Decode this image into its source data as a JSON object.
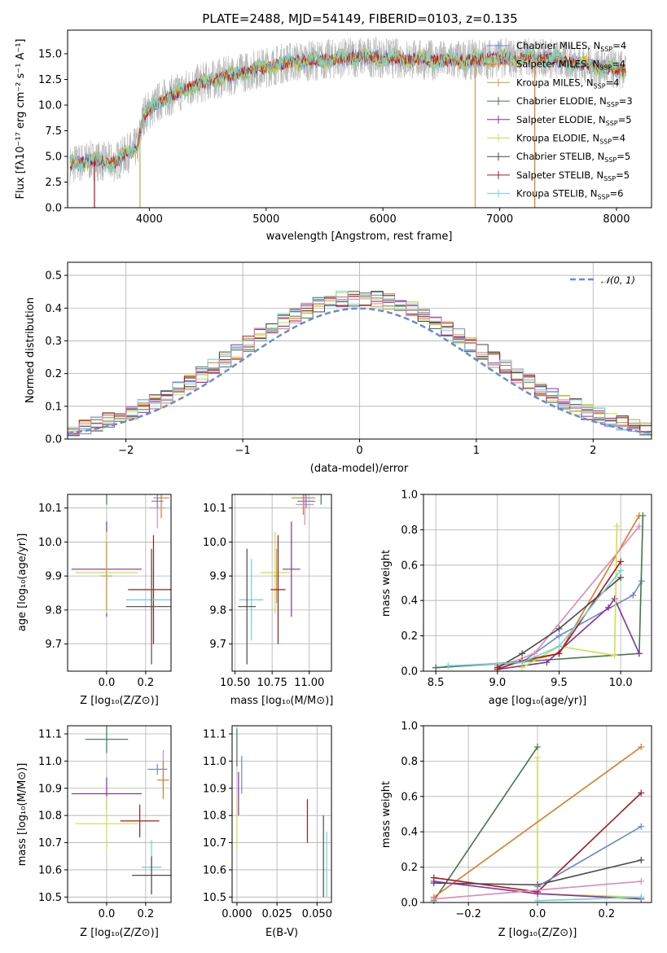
{
  "colors": {
    "Chabrier MILES": "#6a86d3",
    "Salpeter MILES": "#e07a28",
    "Kroupa MILES": "#c9a04a",
    "Chabrier ELODIE": "#3e7a4a",
    "Salpeter ELODIE": "#8a2ea8",
    "Kroupa ELODIE": "#cfe04a",
    "Chabrier STELIB": "#4a4a4a",
    "Salpeter STELIB": "#b01818",
    "Kroupa STELIB": "#6ed4d8",
    "pink": "#e08ab8",
    "grey": "#8a8a8a",
    "normal": "#6a8ad8"
  },
  "chart_data": [
    {
      "id": "spectrum",
      "type": "line",
      "title": "PLATE=2488, MJD=54149, FIBERID=0103, z=0.135",
      "xlabel": "wavelength [Angstrom, rest frame]",
      "ylabel": "Flux [f$_\\lambda$10$^{-17}$ erg cm$^{-2}$ s$^{-1}$ A$^{-1}$]",
      "xlim": [
        3300,
        8300
      ],
      "ylim": [
        0,
        17.3
      ],
      "xticks": [
        "4000",
        "5000",
        "6000",
        "7000",
        "8000"
      ],
      "yticks": [
        "0.0",
        "2.5",
        "5.0",
        "7.5",
        "10.0",
        "12.5",
        "15.0"
      ],
      "legend": [
        {
          "label": "Chabrier MILES, N",
          "sub": "SSP",
          "suffix": "=4"
        },
        {
          "label": "Salpeter MILES, N",
          "sub": "SSP",
          "suffix": "=4"
        },
        {
          "label": "Kroupa MILES, N",
          "sub": "SSP",
          "suffix": "=4"
        },
        {
          "label": "Chabrier ELODIE, N",
          "sub": "SSP",
          "suffix": "=3"
        },
        {
          "label": "Salpeter ELODIE, N",
          "sub": "SSP",
          "suffix": "=5"
        },
        {
          "label": "Kroupa ELODIE, N",
          "sub": "SSP",
          "suffix": "=4"
        },
        {
          "label": "Chabrier STELIB, N",
          "sub": "SSP",
          "suffix": "=5"
        },
        {
          "label": "Salpeter STELIB, N",
          "sub": "SSP",
          "suffix": "=5"
        },
        {
          "label": "Kroupa STELIB, N",
          "sub": "SSP",
          "suffix": "=6"
        }
      ],
      "legend_placement": "right",
      "continuum": [
        [
          3320,
          4.2
        ],
        [
          3500,
          4.6
        ],
        [
          3700,
          4.4
        ],
        [
          3900,
          6.0
        ],
        [
          3950,
          9.0
        ],
        [
          4100,
          10.5
        ],
        [
          4400,
          12.0
        ],
        [
          4800,
          13.2
        ],
        [
          5200,
          14.2
        ],
        [
          5500,
          14.4
        ],
        [
          5800,
          14.7
        ],
        [
          6200,
          14.5
        ],
        [
          6600,
          14.3
        ],
        [
          7000,
          14.6
        ],
        [
          7400,
          14.6
        ],
        [
          7800,
          13.8
        ],
        [
          8080,
          13.3
        ]
      ],
      "spikes": [
        [
          3530,
          0
        ],
        [
          3920,
          0
        ],
        [
          6790,
          0
        ],
        [
          7300,
          0
        ]
      ]
    },
    {
      "id": "residuals",
      "type": "bar",
      "xlabel": "(data-model)/error",
      "ylabel": "Normed distribution",
      "xlim": [
        -2.5,
        2.5
      ],
      "ylim": [
        0,
        0.54
      ],
      "xticks": [
        "−2",
        "−1",
        "0",
        "1",
        "2"
      ],
      "yticks": [
        "0.0",
        "0.1",
        "0.2",
        "0.3",
        "0.4",
        "0.5"
      ],
      "legend_label": "𝒩(0, 1)",
      "legend_placement": "top-right",
      "bin_width": 0.1
    },
    {
      "id": "age-vs-Z",
      "type": "scatter",
      "xlabel": "Z [log$_{10}$(Z/Z$_\\odot$)]",
      "ylabel": "age  [log$_{10}$(age/yr)]",
      "xlim": [
        -0.2,
        0.33
      ],
      "ylim": [
        9.62,
        10.14
      ],
      "xticks": [
        "0.0",
        "0.2"
      ],
      "xtick_values": [
        0,
        0.2
      ],
      "yticks": [
        "9.7",
        "9.8",
        "9.9",
        "10.0",
        "10.1"
      ],
      "ytick_values": [
        9.7,
        9.8,
        9.9,
        10.0,
        10.1
      ],
      "points": [
        {
          "s": "Chabrier ELODIE",
          "x": 0.0,
          "y": 10.17,
          "xe": 0.1,
          "ye": 0.06
        },
        {
          "s": "Salpeter MILES",
          "x": 0.28,
          "y": 10.13,
          "xe": 0.04,
          "ye": 0.06
        },
        {
          "s": "pink",
          "x": 0.26,
          "y": 10.1,
          "xe": 0.04,
          "ye": 0.06
        },
        {
          "s": "Chabrier MILES",
          "x": 0.26,
          "y": 10.12,
          "xe": 0.03,
          "ye": 0.02
        },
        {
          "s": "Salpeter ELODIE",
          "x": 0.0,
          "y": 9.92,
          "xe": 0.18,
          "ye": 0.14
        },
        {
          "s": "Kroupa ELODIE",
          "x": 0.0,
          "y": 9.91,
          "xe": 0.16,
          "ye": 0.12
        },
        {
          "s": "Kroupa MILES",
          "x": 0.0,
          "y": 9.9,
          "xe": 0.03,
          "ye": 0.1
        },
        {
          "s": "Salpeter STELIB",
          "x": 0.24,
          "y": 9.86,
          "xe": 0.13,
          "ye": 0.16
        },
        {
          "s": "Kroupa STELIB",
          "x": 0.23,
          "y": 9.83,
          "xe": 0.13,
          "ye": 0.12
        },
        {
          "s": "Chabrier STELIB",
          "x": 0.23,
          "y": 9.81,
          "xe": 0.13,
          "ye": 0.17
        }
      ]
    },
    {
      "id": "age-vs-mass",
      "type": "scatter",
      "xlabel": "mass [log$_{10}$(M/M$_\\odot$)]",
      "ylabel": "",
      "xlim": [
        10.48,
        11.15
      ],
      "ylim": [
        9.62,
        10.14
      ],
      "xticks": [
        "10.50",
        "10.75",
        "11.00"
      ],
      "xtick_values": [
        10.5,
        10.75,
        11.0
      ],
      "yticks": [
        "9.7",
        "9.8",
        "9.9",
        "10.0",
        "10.1"
      ],
      "ytick_values": [
        9.7,
        9.8,
        9.9,
        10.0,
        10.1
      ],
      "points": [
        {
          "s": "Chabrier ELODIE",
          "x": 11.08,
          "y": 10.17,
          "xe": 0.05,
          "ye": 0.06
        },
        {
          "s": "Salpeter MILES",
          "x": 10.96,
          "y": 10.13,
          "xe": 0.08,
          "ye": 0.05
        },
        {
          "s": "pink",
          "x": 10.97,
          "y": 10.11,
          "xe": 0.06,
          "ye": 0.06
        },
        {
          "s": "Chabrier MILES",
          "x": 10.98,
          "y": 10.12,
          "xe": 0.06,
          "ye": 0.02
        },
        {
          "s": "Salpeter ELODIE",
          "x": 10.88,
          "y": 9.92,
          "xe": 0.06,
          "ye": 0.14
        },
        {
          "s": "Kroupa ELODIE",
          "x": 10.77,
          "y": 9.91,
          "xe": 0.1,
          "ye": 0.12
        },
        {
          "s": "Kroupa MILES",
          "x": 10.78,
          "y": 9.9,
          "xe": 0.02,
          "ye": 0.08
        },
        {
          "s": "Salpeter STELIB",
          "x": 10.79,
          "y": 9.86,
          "xe": 0.05,
          "ye": 0.16
        },
        {
          "s": "Kroupa STELIB",
          "x": 10.61,
          "y": 9.83,
          "xe": 0.08,
          "ye": 0.12
        },
        {
          "s": "Chabrier STELIB",
          "x": 10.58,
          "y": 9.81,
          "xe": 0.06,
          "ye": 0.17
        }
      ]
    },
    {
      "id": "weight-vs-age",
      "type": "line",
      "xlabel": "age  [log$_{10}$(age/yr)]",
      "ylabel": "mass weight",
      "xlim": [
        8.4,
        10.25
      ],
      "ylim": [
        0,
        1
      ],
      "xticks": [
        "8.5",
        "9.0",
        "9.5",
        "10.0"
      ],
      "xtick_values": [
        8.5,
        9.0,
        9.5,
        10.0
      ],
      "yticks": [
        "0.0",
        "0.2",
        "0.4",
        "0.6",
        "0.8",
        "1.0"
      ],
      "ytick_values": [
        0,
        0.2,
        0.4,
        0.6,
        0.8,
        1.0
      ],
      "series": [
        {
          "s": "Chabrier MILES",
          "x": [
            8.5,
            9.2,
            9.5,
            10.1,
            10.17
          ],
          "y": [
            0.02,
            0.05,
            0.2,
            0.43,
            0.51
          ]
        },
        {
          "s": "Salpeter MILES",
          "x": [
            9.0,
            9.2,
            9.5,
            10.15
          ],
          "y": [
            0.03,
            0.05,
            0.1,
            0.88
          ]
        },
        {
          "s": "pink",
          "x": [
            9.0,
            9.3,
            10.15
          ],
          "y": [
            0.02,
            0.1,
            0.82
          ]
        },
        {
          "s": "Chabrier ELODIE",
          "x": [
            8.5,
            10.15,
            10.18
          ],
          "y": [
            0.02,
            0.1,
            0.88
          ]
        },
        {
          "s": "Salpeter ELODIE",
          "x": [
            9.0,
            9.4,
            9.9,
            9.95,
            10.15
          ],
          "y": [
            0.01,
            0.05,
            0.36,
            0.41,
            0.1
          ]
        },
        {
          "s": "Kroupa ELODIE",
          "x": [
            9.2,
            9.5,
            9.95,
            9.97
          ],
          "y": [
            0.02,
            0.14,
            0.09,
            0.82
          ]
        },
        {
          "s": "Chabrier STELIB",
          "x": [
            9.0,
            9.2,
            9.5,
            10.0
          ],
          "y": [
            0.02,
            0.1,
            0.24,
            0.53
          ]
        },
        {
          "s": "Salpeter STELIB",
          "x": [
            9.0,
            9.2,
            9.5,
            10.0
          ],
          "y": [
            0.01,
            0.06,
            0.1,
            0.62
          ]
        },
        {
          "s": "Kroupa STELIB",
          "x": [
            8.6,
            9.2,
            9.5,
            10.0
          ],
          "y": [
            0.03,
            0.05,
            0.14,
            0.57
          ]
        }
      ]
    },
    {
      "id": "mass-vs-Z",
      "type": "scatter",
      "xlabel": "Z [log$_{10}$(Z/Z$_\\odot$)]",
      "ylabel": "mass [log$_{10}$(M/M$_\\odot$)]",
      "xlim": [
        -0.2,
        0.33
      ],
      "ylim": [
        10.48,
        11.13
      ],
      "xticks": [
        "0.0",
        "0.2"
      ],
      "xtick_values": [
        0,
        0.2
      ],
      "yticks": [
        "10.5",
        "10.6",
        "10.7",
        "10.8",
        "10.9",
        "11.0",
        "11.1"
      ],
      "ytick_values": [
        10.5,
        10.6,
        10.7,
        10.8,
        10.9,
        11.0,
        11.1
      ],
      "points": [
        {
          "s": "Chabrier ELODIE",
          "x": 0.0,
          "y": 11.08,
          "xe": 0.11,
          "ye": 0.05
        },
        {
          "s": "pink",
          "x": 0.29,
          "y": 10.97,
          "xe": 0.02,
          "ye": 0.07
        },
        {
          "s": "Chabrier MILES",
          "x": 0.26,
          "y": 10.97,
          "xe": 0.05,
          "ye": 0.02
        },
        {
          "s": "Salpeter MILES",
          "x": 0.29,
          "y": 10.93,
          "xe": 0.03,
          "ye": 0.07
        },
        {
          "s": "Salpeter ELODIE",
          "x": 0.0,
          "y": 10.88,
          "xe": 0.18,
          "ye": 0.06
        },
        {
          "s": "Salpeter STELIB",
          "x": 0.17,
          "y": 10.78,
          "xe": 0.1,
          "ye": 0.06
        },
        {
          "s": "Kroupa ELODIE",
          "x": 0.0,
          "y": 10.77,
          "xe": 0.16,
          "ye": 0.1
        },
        {
          "s": "Kroupa STELIB",
          "x": 0.23,
          "y": 10.61,
          "xe": 0.05,
          "ye": 0.1
        },
        {
          "s": "Chabrier STELIB",
          "x": 0.23,
          "y": 10.58,
          "xe": 0.1,
          "ye": 0.07
        }
      ]
    },
    {
      "id": "mass-vs-EBV",
      "type": "scatter",
      "xlabel": "E(B-V)",
      "ylabel": "",
      "xlim": [
        -0.003,
        0.059
      ],
      "ylim": [
        10.48,
        11.13
      ],
      "xticks": [
        "0.000",
        "0.025",
        "0.050"
      ],
      "xtick_values": [
        0.0,
        0.025,
        0.05
      ],
      "yticks": [
        "10.5",
        "10.6",
        "10.7",
        "10.8",
        "10.9",
        "11.0",
        "11.1"
      ],
      "ytick_values": [
        10.5,
        10.6,
        10.7,
        10.8,
        10.9,
        11.0,
        11.1
      ],
      "points": [
        {
          "s": "Chabrier ELODIE",
          "x": 0.0,
          "y": 11.05,
          "xe": 0,
          "ye": 0.07
        },
        {
          "s": "Chabrier MILES",
          "x": 0.003,
          "y": 10.95,
          "xe": 0,
          "ye": 0.07
        },
        {
          "s": "Salpeter ELODIE",
          "x": 0.001,
          "y": 10.88,
          "xe": 0,
          "ye": 0.08
        },
        {
          "s": "Kroupa ELODIE",
          "x": 0.0,
          "y": 10.77,
          "xe": 0,
          "ye": 0.1
        },
        {
          "s": "Salpeter STELIB",
          "x": 0.044,
          "y": 10.78,
          "xe": 0,
          "ye": 0.08
        },
        {
          "s": "Chabrier STELIB",
          "x": 0.054,
          "y": 10.65,
          "xe": 0,
          "ye": 0.15
        },
        {
          "s": "Kroupa STELIB",
          "x": 0.056,
          "y": 10.62,
          "xe": 0,
          "ye": 0.12
        }
      ]
    },
    {
      "id": "weight-vs-Z",
      "type": "line",
      "xlabel": "Z [log$_{10}$(Z/Z$_\\odot$)]",
      "ylabel": "mass weight",
      "xlim": [
        -0.33,
        0.33
      ],
      "ylim": [
        0,
        1
      ],
      "xticks": [
        "−0.2",
        "0.0",
        "0.2"
      ],
      "xtick_values": [
        -0.2,
        0.0,
        0.2
      ],
      "yticks": [
        "0.0",
        "0.2",
        "0.4",
        "0.6",
        "0.8",
        "1.0"
      ],
      "ytick_values": [
        0,
        0.2,
        0.4,
        0.6,
        0.8,
        1.0
      ],
      "series": [
        {
          "s": "Chabrier ELODIE",
          "x": [
            -0.3,
            0.0
          ],
          "y": [
            0.01,
            0.88
          ]
        },
        {
          "s": "Kroupa ELODIE",
          "x": [
            0.0,
            0.0,
            0.3
          ],
          "y": [
            0.82,
            0.05,
            0.03
          ]
        },
        {
          "s": "Salpeter MILES",
          "x": [
            -0.3,
            0.3
          ],
          "y": [
            0.03,
            0.88
          ]
        },
        {
          "s": "Salpeter STELIB",
          "x": [
            -0.3,
            0.0,
            0.3
          ],
          "y": [
            0.14,
            0.06,
            0.62
          ]
        },
        {
          "s": "Chabrier STELIB",
          "x": [
            -0.3,
            0.0,
            0.3
          ],
          "y": [
            0.11,
            0.1,
            0.24
          ]
        },
        {
          "s": "Salpeter ELODIE",
          "x": [
            -0.3,
            0.0,
            0.3
          ],
          "y": [
            0.12,
            0.05,
            0.02
          ]
        },
        {
          "s": "pink",
          "x": [
            -0.3,
            0.3
          ],
          "y": [
            0.02,
            0.12
          ]
        },
        {
          "s": "Chabrier MILES",
          "x": [
            0.0,
            0.3
          ],
          "y": [
            0.09,
            0.43
          ]
        },
        {
          "s": "Kroupa STELIB",
          "x": [
            0.0,
            0.3
          ],
          "y": [
            0.01,
            0.03
          ]
        }
      ]
    }
  ]
}
